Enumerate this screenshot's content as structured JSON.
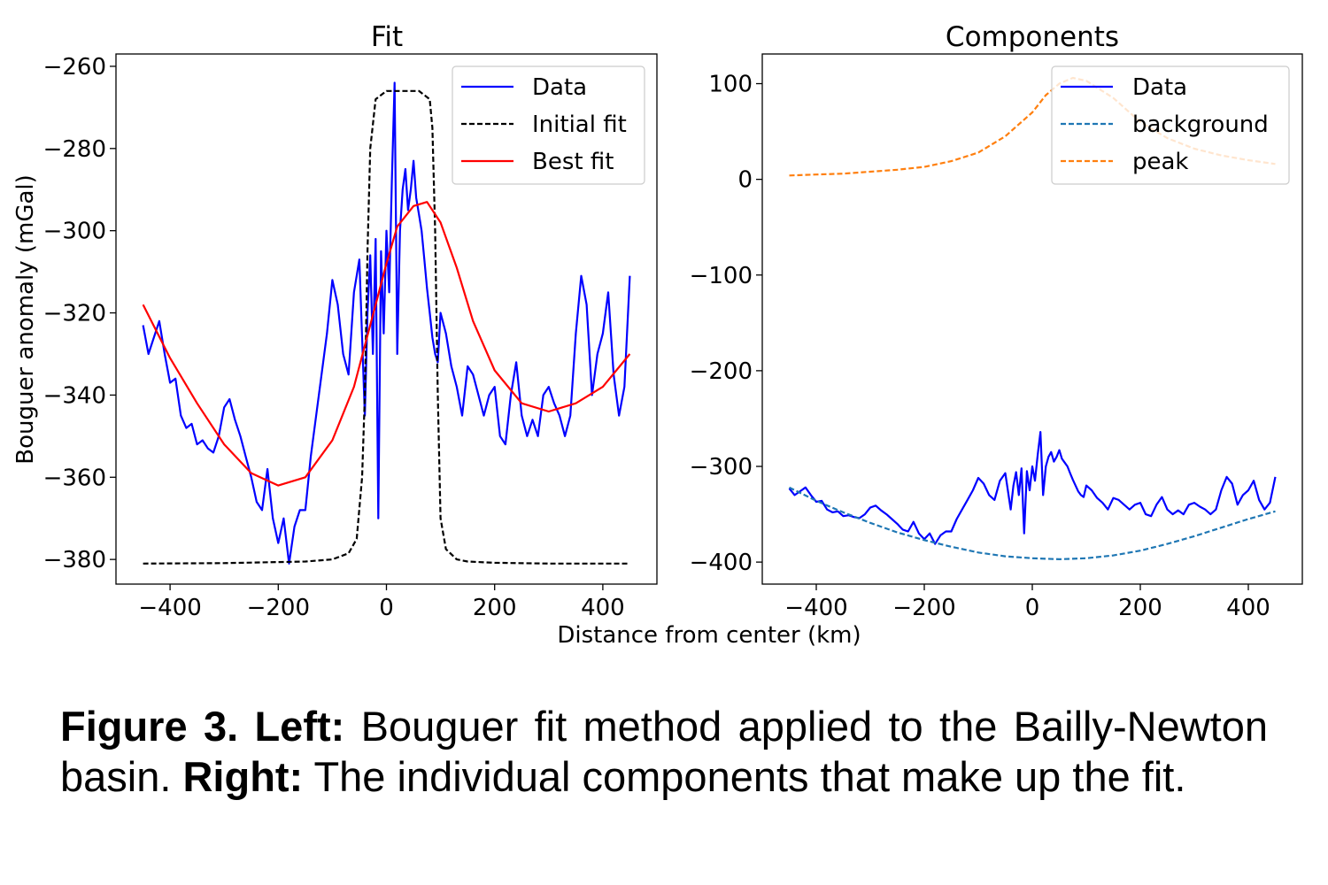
{
  "chart_data": [
    {
      "type": "line",
      "title": "Fit",
      "ylabel": "Bouguer anomaly (mGal)",
      "xlim": [
        -500,
        500
      ],
      "ylim": [
        -386,
        -257
      ],
      "xticks": [
        -400,
        -200,
        0,
        200,
        400
      ],
      "yticks": [
        -380,
        -360,
        -340,
        -320,
        -300,
        -280,
        -260
      ],
      "grid": false,
      "legend": "top-right",
      "series": [
        {
          "name": "Data",
          "color": "#0000ff",
          "dash": "solid",
          "x": [
            -450,
            -440,
            -430,
            -420,
            -410,
            -400,
            -390,
            -380,
            -370,
            -360,
            -350,
            -340,
            -330,
            -320,
            -310,
            -300,
            -290,
            -280,
            -270,
            -260,
            -250,
            -240,
            -230,
            -220,
            -210,
            -200,
            -190,
            -180,
            -170,
            -160,
            -150,
            -140,
            -130,
            -120,
            -110,
            -100,
            -90,
            -80,
            -70,
            -60,
            -50,
            -40,
            -35,
            -30,
            -25,
            -20,
            -15,
            -10,
            -5,
            0,
            5,
            10,
            15,
            20,
            25,
            30,
            35,
            40,
            45,
            50,
            55,
            60,
            65,
            70,
            75,
            80,
            85,
            90,
            95,
            100,
            110,
            120,
            130,
            140,
            150,
            160,
            170,
            180,
            190,
            200,
            210,
            220,
            230,
            240,
            250,
            260,
            270,
            280,
            290,
            300,
            310,
            320,
            330,
            340,
            350,
            360,
            370,
            380,
            390,
            400,
            410,
            420,
            430,
            440,
            450
          ],
          "y": [
            -323,
            -330,
            -326,
            -322,
            -330,
            -337,
            -336,
            -345,
            -348,
            -347,
            -352,
            -351,
            -353,
            -354,
            -350,
            -343,
            -341,
            -346,
            -350,
            -355,
            -360,
            -366,
            -368,
            -358,
            -370,
            -376,
            -370,
            -381,
            -372,
            -368,
            -368,
            -355,
            -345,
            -335,
            -325,
            -312,
            -318,
            -330,
            -335,
            -315,
            -307,
            -345,
            -320,
            -306,
            -330,
            -302,
            -370,
            -305,
            -325,
            -300,
            -315,
            -288,
            -264,
            -330,
            -300,
            -290,
            -285,
            -295,
            -290,
            -283,
            -292,
            -296,
            -300,
            -307,
            -314,
            -320,
            -326,
            -330,
            -332,
            -320,
            -325,
            -333,
            -338,
            -345,
            -333,
            -335,
            -340,
            -345,
            -340,
            -338,
            -350,
            -352,
            -340,
            -332,
            -345,
            -350,
            -346,
            -350,
            -340,
            -338,
            -342,
            -345,
            -350,
            -345,
            -325,
            -311,
            -318,
            -340,
            -330,
            -325,
            -315,
            -335,
            -345,
            -338,
            -311
          ]
        },
        {
          "name": "Initial fit",
          "color": "#000000",
          "dash": "dashed",
          "x": [
            -450,
            -300,
            -150,
            -100,
            -70,
            -55,
            -45,
            -40,
            -35,
            -30,
            -20,
            0,
            20,
            40,
            60,
            80,
            85,
            90,
            95,
            100,
            110,
            130,
            150,
            200,
            300,
            450
          ],
          "y": [
            -381,
            -380.9,
            -380.5,
            -380,
            -378.5,
            -375,
            -360,
            -340,
            -305,
            -280,
            -268,
            -266,
            -266,
            -266,
            -266,
            -268,
            -275,
            -300,
            -340,
            -370,
            -377.5,
            -380,
            -380.5,
            -380.8,
            -381,
            -381
          ]
        },
        {
          "name": "Best fit",
          "color": "#ff0000",
          "dash": "solid",
          "x": [
            -450,
            -400,
            -350,
            -300,
            -250,
            -200,
            -150,
            -100,
            -60,
            -20,
            0,
            20,
            50,
            75,
            100,
            130,
            160,
            200,
            250,
            300,
            350,
            400,
            450
          ],
          "y": [
            -318,
            -331,
            -342,
            -352,
            -359,
            -362,
            -360,
            -351,
            -338,
            -318,
            -308,
            -299,
            -294,
            -293,
            -298,
            -309,
            -322,
            -334,
            -342,
            -344,
            -342,
            -338,
            -330
          ]
        }
      ]
    },
    {
      "type": "line",
      "title": "Components",
      "xlim": [
        -500,
        500
      ],
      "ylim": [
        -423,
        131
      ],
      "xticks": [
        -400,
        -200,
        0,
        200,
        400
      ],
      "yticks": [
        -400,
        -300,
        -200,
        -100,
        0,
        100
      ],
      "grid": false,
      "legend": "top-right",
      "series": [
        {
          "name": "Data",
          "color": "#0000ff",
          "dash": "solid",
          "x": [
            -450,
            -440,
            -430,
            -420,
            -410,
            -400,
            -390,
            -380,
            -370,
            -360,
            -350,
            -340,
            -330,
            -320,
            -310,
            -300,
            -290,
            -280,
            -270,
            -260,
            -250,
            -240,
            -230,
            -220,
            -210,
            -200,
            -190,
            -180,
            -170,
            -160,
            -150,
            -140,
            -130,
            -120,
            -110,
            -100,
            -90,
            -80,
            -70,
            -60,
            -50,
            -40,
            -35,
            -30,
            -25,
            -20,
            -15,
            -10,
            -5,
            0,
            5,
            10,
            15,
            20,
            25,
            30,
            35,
            40,
            45,
            50,
            55,
            60,
            65,
            70,
            75,
            80,
            85,
            90,
            95,
            100,
            110,
            120,
            130,
            140,
            150,
            160,
            170,
            180,
            190,
            200,
            210,
            220,
            230,
            240,
            250,
            260,
            270,
            280,
            290,
            300,
            310,
            320,
            330,
            340,
            350,
            360,
            370,
            380,
            390,
            400,
            410,
            420,
            430,
            440,
            450
          ],
          "y": [
            -323,
            -330,
            -326,
            -322,
            -330,
            -337,
            -336,
            -345,
            -348,
            -347,
            -352,
            -351,
            -353,
            -354,
            -350,
            -343,
            -341,
            -346,
            -350,
            -355,
            -360,
            -366,
            -368,
            -358,
            -370,
            -376,
            -370,
            -381,
            -372,
            -368,
            -368,
            -355,
            -345,
            -335,
            -325,
            -312,
            -318,
            -330,
            -335,
            -315,
            -307,
            -345,
            -320,
            -306,
            -330,
            -302,
            -370,
            -305,
            -325,
            -300,
            -315,
            -288,
            -264,
            -330,
            -300,
            -290,
            -285,
            -295,
            -290,
            -283,
            -292,
            -296,
            -300,
            -307,
            -314,
            -320,
            -326,
            -330,
            -332,
            -320,
            -325,
            -333,
            -338,
            -345,
            -333,
            -335,
            -340,
            -345,
            -340,
            -338,
            -350,
            -352,
            -340,
            -332,
            -345,
            -350,
            -346,
            -350,
            -340,
            -338,
            -342,
            -345,
            -350,
            -345,
            -325,
            -311,
            -318,
            -340,
            -330,
            -325,
            -315,
            -335,
            -345,
            -338,
            -311
          ]
        },
        {
          "name": "background",
          "color": "#1f77b4",
          "dash": "dashed",
          "x": [
            -450,
            -400,
            -350,
            -300,
            -250,
            -200,
            -150,
            -100,
            -50,
            0,
            50,
            100,
            150,
            200,
            250,
            300,
            350,
            400,
            450
          ],
          "y": [
            -322,
            -336,
            -348,
            -359,
            -369,
            -377,
            -384,
            -390,
            -394,
            -396,
            -397,
            -396,
            -393,
            -388,
            -381,
            -373,
            -364,
            -355,
            -347
          ]
        },
        {
          "name": "peak",
          "color": "#ff7f0e",
          "dash": "dashed",
          "x": [
            -450,
            -400,
            -350,
            -300,
            -250,
            -200,
            -150,
            -100,
            -50,
            0,
            25,
            50,
            75,
            100,
            150,
            200,
            250,
            300,
            350,
            400,
            450
          ],
          "y": [
            4,
            5,
            6,
            8,
            10,
            13,
            19,
            28,
            45,
            70,
            88,
            100,
            106,
            103,
            85,
            60,
            43,
            32,
            25,
            20,
            16
          ]
        }
      ]
    }
  ],
  "shared_xlabel": "Distance from center (km)",
  "caption": {
    "fig_label": "Figure 3.",
    "left_label": "Left:",
    "left_text": "Bouguer fit method applied to the Bailly-Newton basin.",
    "right_label": "Right:",
    "right_text": "The individual components that make up the fit."
  }
}
